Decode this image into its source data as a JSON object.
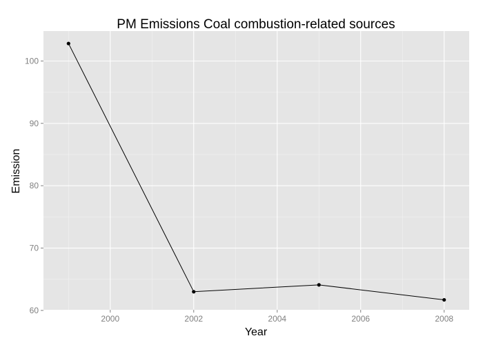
{
  "chart_data": {
    "type": "line",
    "title": "PM Emissions Coal combustion-related sources",
    "xlabel": "Year",
    "ylabel": "Emission",
    "x": [
      1999,
      2002,
      2005,
      2008
    ],
    "series": [
      {
        "values": [
          102.8,
          63.0,
          64.1,
          61.7
        ]
      }
    ],
    "xlim": [
      1998.4,
      2008.6
    ],
    "ylim": [
      60.1,
      104.8
    ],
    "xticks": [
      2000,
      2002,
      2004,
      2006,
      2008
    ],
    "yticks": [
      60,
      70,
      80,
      90,
      100
    ],
    "grid": true,
    "legend": "none",
    "colors": {
      "panel": "#e5e5e5",
      "grid_major": "#ffffff",
      "grid_minor": "#f2f2f2",
      "line": "#000000",
      "tick_text": "#7f7f7f"
    }
  }
}
